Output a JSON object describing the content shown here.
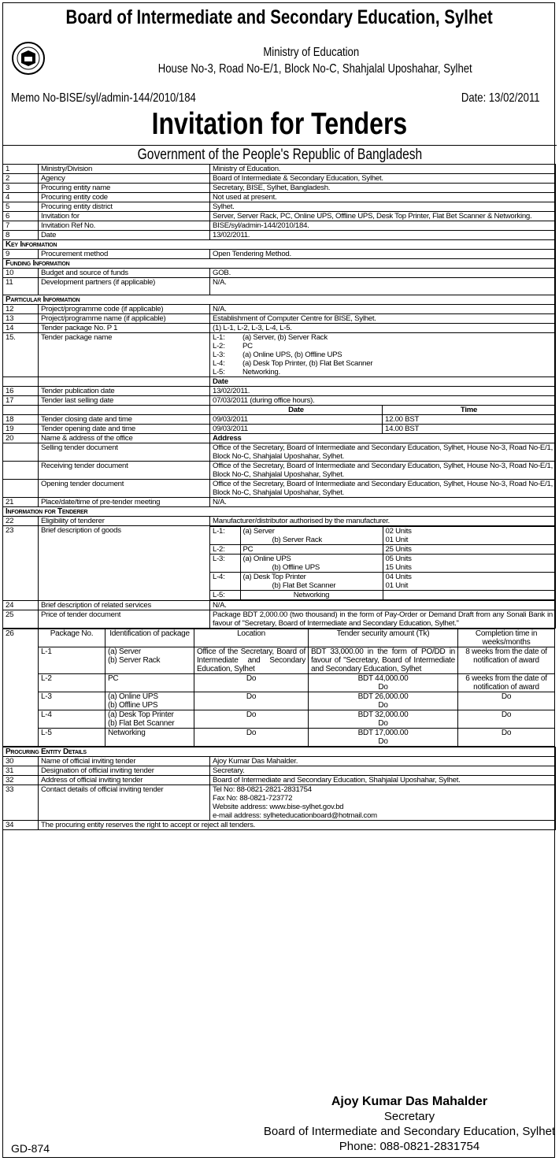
{
  "header": {
    "title": "Board of Intermediate and Secondary Education, Sylhet",
    "ministry": "Ministry of Education",
    "address": "House No-3, Road No-E/1, Block No-C, Shahjalal Uposhahar, Sylhet",
    "memo": "Memo No-BISE/syl/admin-144/2010/184",
    "date": "Date: 13/02/2011",
    "heading": "Invitation for Tenders",
    "government": "Government of the People's Republic of Bangladesh"
  },
  "rows": [
    {
      "n": "1",
      "label": "Ministry/Division",
      "value": "Ministry of Education."
    },
    {
      "n": "2",
      "label": "Agency",
      "value": "Board of Intermediate & Secondary Education, Sylhet."
    },
    {
      "n": "3",
      "label": "Procuring entity name",
      "value": "Secretary, BISE, Sylhet, Bangladesh."
    },
    {
      "n": "4",
      "label": "Procuring entity code",
      "value": "Not used at present."
    },
    {
      "n": "5",
      "label": "Procuring entity district",
      "value": "Sylhet."
    },
    {
      "n": "6",
      "label": "Invitation for",
      "value": "Server, Server Rack, PC, Online UPS, Offline UPS, Desk Top Printer, Flat Bet Scanner & Networking."
    },
    {
      "n": "7",
      "label": "Invitation Ref No.",
      "value": "BISE/syl/admin-144/2010/184."
    },
    {
      "n": "8",
      "label": "Date",
      "value": "13/02/2011."
    },
    {
      "section": "Key Information"
    },
    {
      "n": "9",
      "label": "Procurement method",
      "value": "Open Tendering Method."
    },
    {
      "section": "Funding Information"
    },
    {
      "n": "10",
      "label": "Budget and source of funds",
      "value": "GOB."
    },
    {
      "n": "11",
      "label": "Development partners (if applicable)",
      "value": "N/A."
    },
    {
      "section": "Particular Information"
    },
    {
      "n": "12",
      "label": "Project/programme code (if applicable)",
      "value": "N/A."
    },
    {
      "n": "13",
      "label": "Project/programme name (if applicable)",
      "value": "Establishment of Computer Centre for BISE, Sylhet."
    },
    {
      "n": "14",
      "label": "Tender package No. P 1",
      "value": "(1) L-1, L-2, L-3, L-4, L-5."
    },
    {
      "n": "15.",
      "label": "Tender package name",
      "lines": [
        [
          "L-1:",
          "(a) Server, (b) Server Rack"
        ],
        [
          "L-2:",
          "PC"
        ],
        [
          "L-3:",
          "(a) Online UPS, (b) Offline UPS"
        ],
        [
          "L-4:",
          "(a) Desk Top Printer, (b) Flat Bet Scanner"
        ],
        [
          "L-5:",
          "Networking."
        ]
      ]
    },
    {
      "subhead": "Date"
    },
    {
      "n": "16",
      "label": "Tender publication date",
      "value": "13/02/2011."
    },
    {
      "n": "17",
      "label": "Tender last selling date",
      "value": "07/03/2011 (during office hours)."
    },
    {
      "split_head": [
        "Date",
        "Time"
      ]
    },
    {
      "n": "18",
      "label": "Tender closing date and time",
      "split": [
        "09/03/2011",
        "12.00 BST"
      ]
    },
    {
      "n": "19",
      "label": "Tender opening date and time",
      "split": [
        "09/03/2011",
        "14.00 BST"
      ]
    },
    {
      "n": "20",
      "label": "Name & address of the office",
      "value": "Address",
      "bold": true
    },
    {
      "n": "",
      "label": "Selling tender document",
      "value": "Office of the Secretary, Board of Intermediate and Secondary Education, Sylhet, House No-3, Road No-E/1, Block No-C, Shahjalal Uposhahar, Sylhet."
    },
    {
      "n": "",
      "label": "Receiving tender document",
      "value": "Office of the Secretary, Board of Intermediate and Secondary Education, Sylhet, House No-3, Road No-E/1, Block No-C, Shahjalal Uposhahar, Sylhet."
    },
    {
      "n": "",
      "label": "Opening tender document",
      "value": "Office of the Secretary, Board of Intermediate and Secondary Education, Sylhet, House No-3, Road No-E/1, Block No-C, Shahjalal Uposhahar, Sylhet."
    },
    {
      "n": "21",
      "label": "Place/date/time of pre-tender meeting",
      "value": "N/A."
    },
    {
      "section": "Information for Tenderer"
    },
    {
      "n": "22",
      "label": "Eligibility of tenderer",
      "value": "Manufacturer/distributor authorised by the manufacturer."
    },
    {
      "n": "23",
      "label": "Brief description of goods",
      "goods": [
        {
          "lot": "L-1:",
          "items": [
            "(a) Server",
            "(b) Server Rack"
          ],
          "units": [
            "02 Units",
            "01 Unit"
          ]
        },
        {
          "lot": "L-2:",
          "items": [
            "PC"
          ],
          "units": [
            "25 Units"
          ]
        },
        {
          "lot": "L-3:",
          "items": [
            "(a) Online UPS",
            "(b) Offline UPS"
          ],
          "units": [
            "05 Units",
            "15 Units"
          ]
        },
        {
          "lot": "L-4:",
          "items": [
            "(a) Desk Top Printer",
            "(b) Flat Bet Scanner"
          ],
          "units": [
            "04 Units",
            "01 Unit"
          ]
        },
        {
          "lot": "L-5:",
          "items": [
            "Networking"
          ],
          "units": [
            ""
          ],
          "center": true
        }
      ]
    },
    {
      "n": "24",
      "label": "Brief description of related services",
      "value": "N/A."
    },
    {
      "n": "25",
      "label": "Price of tender document",
      "value": "Package BDT 2,000.00 (two thousand) in the form of Pay-Order or Demand Draft from any Sonali Bank in favour of \"Secretary, Board of Intermediate and Secondary Education, Sylhet.\""
    }
  ],
  "packages": {
    "n": "26",
    "headers": [
      "Package No.",
      "Identification of package",
      "Location",
      "Tender security amount (Tk)",
      "Completion time in weeks/months"
    ],
    "rows": [
      {
        "pkg": "L-1",
        "ident": "(a) Server\n(b) Server Rack",
        "location": "Office of the Secretary, Board of Intermediate and Secondary Education, Sylhet",
        "security": "BDT 33,000.00 in the form of PO/DD in favour of \"Secretary, Board of Intermediate and Secondary Education, Sylhet",
        "completion": "8 weeks from the date of notification of award"
      },
      {
        "pkg": "L-2",
        "ident": "PC",
        "location": "Do",
        "security": "BDT 44,000.00\nDo",
        "completion": "6 weeks from the date of notification of award"
      },
      {
        "pkg": "L-3",
        "ident": "(a) Online UPS\n(b) Offline UPS",
        "location": "Do",
        "security": "BDT 26,000.00\nDo",
        "completion": "Do"
      },
      {
        "pkg": "L-4",
        "ident": "(a) Desk Top Printer\n(b) Flat Bet Scanner",
        "location": "Do",
        "security": "BDT 32,000.00\nDo",
        "completion": "Do"
      },
      {
        "pkg": "L-5",
        "ident": "Networking",
        "location": "Do",
        "security": "BDT 17,000.00\nDo",
        "completion": "Do"
      }
    ]
  },
  "rows2": [
    {
      "section": "Procuring Entity Details"
    },
    {
      "n": "30",
      "label": "Name of official inviting tender",
      "value": "Ajoy Kumar Das Mahalder."
    },
    {
      "n": "31",
      "label": "Designation of official inviting tender",
      "value": "Secretary."
    },
    {
      "n": "32",
      "label": "Address of official inviting tender",
      "value": "Board of Intermediate and Secondary Education, Shahjalal Uposhahar, Sylhet."
    },
    {
      "n": "33",
      "label": "Contact details of official inviting tender",
      "contact": [
        "Tel No: 88-0821-2821-2831754",
        "Fax No: 88-0821-723772",
        "Website address: www.bise-sylhet.gov.bd",
        "e-mail address: sylheteducationboard@hotmail.com"
      ]
    },
    {
      "n": "34",
      "full": "The procuring entity reserves the right to accept or reject all tenders."
    }
  ],
  "signature": {
    "name": "Ajoy Kumar Das Mahalder",
    "designation": "Secretary",
    "organization": "Board of Intermediate and Secondary Education, Sylhet",
    "phone": "Phone: 088-0821-2831754"
  },
  "footer_code": "GD-874",
  "logo": {
    "icon": "bise-sylhet-seal-icon"
  }
}
